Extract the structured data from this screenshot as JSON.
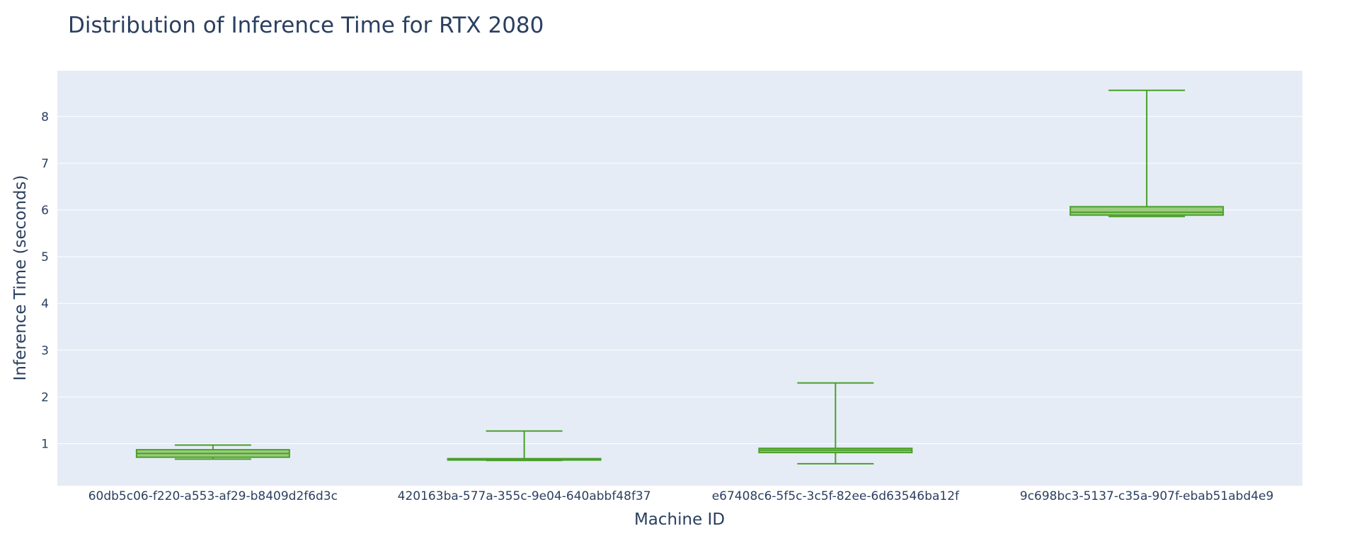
{
  "chart_data": {
    "type": "box",
    "title": "Distribution of Inference Time for RTX 2080",
    "xlabel": "Machine ID",
    "ylabel": "Inference Time (seconds)",
    "ylim": [
      0.1,
      8.98
    ],
    "yticks": [
      1,
      2,
      3,
      4,
      5,
      6,
      7,
      8
    ],
    "grid": true,
    "legend": "none",
    "colors": {
      "box_line": "#4a9e2a",
      "box_fill": "#9ccc7e",
      "plot_bg": "#e5ecf6",
      "grid": "#ffffff",
      "text": "#2a3f5f"
    },
    "categories": [
      "60db5c06-f220-a553-af29-b8409d2f6d3c",
      "420163ba-577a-355c-9e04-640abbf48f37",
      "e67408c6-5f5c-3c5f-82ee-6d63546ba12f",
      "9c698bc3-5137-c35a-907f-ebab51abd4e9"
    ],
    "boxes": [
      {
        "min": 0.67,
        "q1": 0.71,
        "median": 0.79,
        "q3": 0.87,
        "max": 0.97
      },
      {
        "min": 0.64,
        "q1": 0.65,
        "median": 0.66,
        "q3": 0.68,
        "max": 1.27
      },
      {
        "min": 0.57,
        "q1": 0.81,
        "median": 0.86,
        "q3": 0.9,
        "max": 2.3
      },
      {
        "min": 5.86,
        "q1": 5.89,
        "median": 5.95,
        "q3": 6.07,
        "max": 8.56
      }
    ]
  }
}
